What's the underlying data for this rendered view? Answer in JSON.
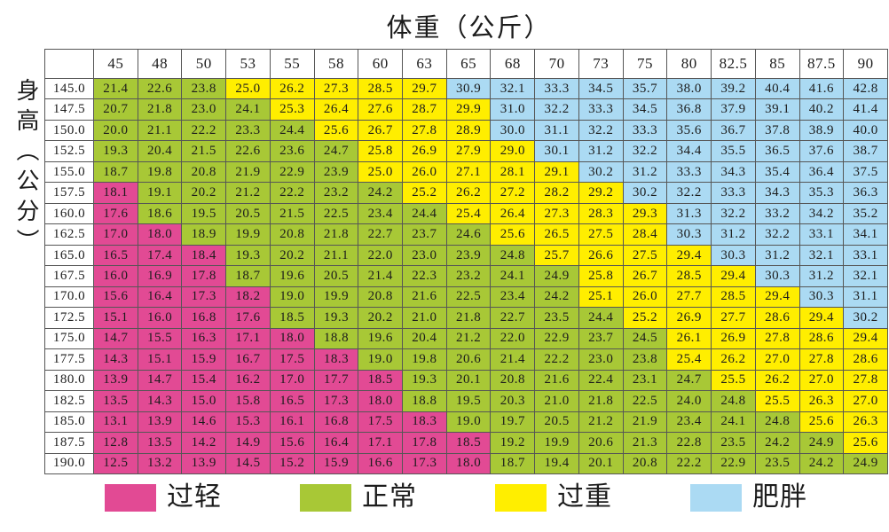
{
  "title": "体重（公斤）",
  "y_axis_label": "身高（公分）",
  "colors": {
    "pink": "#e24a94",
    "green": "#a8c836",
    "yellow": "#ffee00",
    "blue": "#abdaf3",
    "grid": "#565656",
    "header_bg": "#ffffff",
    "text": "#1c1c1c"
  },
  "legend": {
    "items": [
      {
        "key": "underweight",
        "label": "过轻",
        "color": "#e24a94"
      },
      {
        "key": "normal",
        "label": "正常",
        "color": "#a8c836"
      },
      {
        "key": "overweight",
        "label": "过重",
        "color": "#ffee00"
      },
      {
        "key": "obese",
        "label": "肥胖",
        "color": "#abdaf3"
      }
    ]
  },
  "chart_data": {
    "type": "heatmap",
    "title": "体重（公斤）",
    "ylabel": "身高（公分）",
    "legend_labels": [
      "过轻",
      "正常",
      "过重",
      "肥胖"
    ],
    "weights_kg": [
      "45",
      "48",
      "50",
      "53",
      "55",
      "58",
      "60",
      "63",
      "65",
      "68",
      "70",
      "73",
      "75",
      "80",
      "82.5",
      "85",
      "87.5",
      "90"
    ],
    "heights_cm": [
      "145.0",
      "147.5",
      "150.0",
      "152.5",
      "155.0",
      "157.5",
      "160.0",
      "162.5",
      "165.0",
      "167.5",
      "170.0",
      "172.5",
      "175.0",
      "177.5",
      "180.0",
      "182.5",
      "185.0",
      "187.5",
      "190.0"
    ],
    "band_meaning": {
      "pink": "过轻",
      "green": "正常",
      "yellow": "过重",
      "blue": "肥胖"
    },
    "rows": [
      {
        "height": "145.0",
        "values": [
          "21.4",
          "22.6",
          "23.8",
          "25.0",
          "26.2",
          "27.3",
          "28.5",
          "29.7",
          "30.9",
          "32.1",
          "33.3",
          "34.5",
          "35.7",
          "38.0",
          "39.2",
          "40.4",
          "41.6",
          "42.8"
        ],
        "bands": {
          "green": 0,
          "yellow": 3,
          "blue": 8
        }
      },
      {
        "height": "147.5",
        "values": [
          "20.7",
          "21.8",
          "23.0",
          "24.1",
          "25.3",
          "26.4",
          "27.6",
          "28.7",
          "29.9",
          "31.0",
          "32.2",
          "33.3",
          "34.5",
          "36.8",
          "37.9",
          "39.1",
          "40.2",
          "41.4"
        ],
        "bands": {
          "green": 0,
          "yellow": 4,
          "blue": 9
        }
      },
      {
        "height": "150.0",
        "values": [
          "20.0",
          "21.1",
          "22.2",
          "23.3",
          "24.4",
          "25.6",
          "26.7",
          "27.8",
          "28.9",
          "30.0",
          "31.1",
          "32.2",
          "33.3",
          "35.6",
          "36.7",
          "37.8",
          "38.9",
          "40.0"
        ],
        "bands": {
          "green": 0,
          "yellow": 5,
          "blue": 9
        }
      },
      {
        "height": "152.5",
        "values": [
          "19.3",
          "20.4",
          "21.5",
          "22.6",
          "23.6",
          "24.7",
          "25.8",
          "26.9",
          "27.9",
          "29.0",
          "30.1",
          "31.2",
          "32.2",
          "34.4",
          "35.5",
          "36.5",
          "37.6",
          "38.7"
        ],
        "bands": {
          "green": 0,
          "yellow": 6,
          "blue": 10
        }
      },
      {
        "height": "155.0",
        "values": [
          "18.7",
          "19.8",
          "20.8",
          "21.9",
          "22.9",
          "23.9",
          "25.0",
          "26.0",
          "27.1",
          "28.1",
          "29.1",
          "30.2",
          "31.2",
          "33.3",
          "34.3",
          "35.4",
          "36.4",
          "37.5"
        ],
        "bands": {
          "green": 0,
          "yellow": 6,
          "blue": 11
        }
      },
      {
        "height": "157.5",
        "values": [
          "18.1",
          "19.1",
          "20.2",
          "21.2",
          "22.2",
          "23.2",
          "24.2",
          "25.2",
          "26.2",
          "27.2",
          "28.2",
          "29.2",
          "30.2",
          "32.2",
          "33.3",
          "34.3",
          "35.3",
          "36.3"
        ],
        "bands": {
          "green": 1,
          "yellow": 7,
          "blue": 12
        }
      },
      {
        "height": "160.0",
        "values": [
          "17.6",
          "18.6",
          "19.5",
          "20.5",
          "21.5",
          "22.5",
          "23.4",
          "24.4",
          "25.4",
          "26.4",
          "27.3",
          "28.3",
          "29.3",
          "31.3",
          "32.2",
          "33.2",
          "34.2",
          "35.2"
        ],
        "bands": {
          "green": 1,
          "yellow": 8,
          "blue": 13
        }
      },
      {
        "height": "162.5",
        "values": [
          "17.0",
          "18.0",
          "18.9",
          "19.9",
          "20.8",
          "21.8",
          "22.7",
          "23.7",
          "24.6",
          "25.6",
          "26.5",
          "27.5",
          "28.4",
          "30.3",
          "31.2",
          "32.2",
          "33.1",
          "34.1"
        ],
        "bands": {
          "green": 2,
          "yellow": 9,
          "blue": 13
        }
      },
      {
        "height": "165.0",
        "values": [
          "16.5",
          "17.4",
          "18.4",
          "19.3",
          "20.2",
          "21.1",
          "22.0",
          "23.0",
          "23.9",
          "24.8",
          "25.7",
          "26.6",
          "27.5",
          "29.4",
          "30.3",
          "31.2",
          "32.1",
          "33.1"
        ],
        "bands": {
          "green": 3,
          "yellow": 10,
          "blue": 14
        }
      },
      {
        "height": "167.5",
        "values": [
          "16.0",
          "16.9",
          "17.8",
          "18.7",
          "19.6",
          "20.5",
          "21.4",
          "22.3",
          "23.2",
          "24.1",
          "24.9",
          "25.8",
          "26.7",
          "28.5",
          "29.4",
          "30.3",
          "31.2",
          "32.1"
        ],
        "bands": {
          "green": 3,
          "yellow": 11,
          "blue": 15
        }
      },
      {
        "height": "170.0",
        "values": [
          "15.6",
          "16.4",
          "17.3",
          "18.2",
          "19.0",
          "19.9",
          "20.8",
          "21.6",
          "22.5",
          "23.4",
          "24.2",
          "25.1",
          "26.0",
          "27.7",
          "28.5",
          "29.4",
          "30.3",
          "31.1"
        ],
        "bands": {
          "green": 4,
          "yellow": 11,
          "blue": 16
        }
      },
      {
        "height": "172.5",
        "values": [
          "15.1",
          "16.0",
          "16.8",
          "17.6",
          "18.5",
          "19.3",
          "20.2",
          "21.0",
          "21.8",
          "22.7",
          "23.5",
          "24.4",
          "25.2",
          "26.9",
          "27.7",
          "28.6",
          "29.4",
          "30.2"
        ],
        "bands": {
          "green": 4,
          "yellow": 12,
          "blue": 17
        }
      },
      {
        "height": "175.0",
        "values": [
          "14.7",
          "15.5",
          "16.3",
          "17.1",
          "18.0",
          "18.8",
          "19.6",
          "20.4",
          "21.2",
          "22.0",
          "22.9",
          "23.7",
          "24.5",
          "26.1",
          "26.9",
          "27.8",
          "28.6",
          "29.4"
        ],
        "bands": {
          "green": 5,
          "yellow": 13,
          "blue": null
        }
      },
      {
        "height": "177.5",
        "values": [
          "14.3",
          "15.1",
          "15.9",
          "16.7",
          "17.5",
          "18.3",
          "19.0",
          "19.8",
          "20.6",
          "21.4",
          "22.2",
          "23.0",
          "23.8",
          "25.4",
          "26.2",
          "27.0",
          "27.8",
          "28.6"
        ],
        "bands": {
          "green": 6,
          "yellow": 13,
          "blue": null
        }
      },
      {
        "height": "180.0",
        "values": [
          "13.9",
          "14.7",
          "15.4",
          "16.2",
          "17.0",
          "17.7",
          "18.5",
          "19.3",
          "20.1",
          "20.8",
          "21.6",
          "22.4",
          "23.1",
          "24.7",
          "25.5",
          "26.2",
          "27.0",
          "27.8"
        ],
        "bands": {
          "green": 7,
          "yellow": 14,
          "blue": null
        }
      },
      {
        "height": "182.5",
        "values": [
          "13.5",
          "14.3",
          "15.0",
          "15.8",
          "16.5",
          "17.3",
          "18.0",
          "18.8",
          "19.5",
          "20.3",
          "21.0",
          "21.8",
          "22.5",
          "24.0",
          "24.8",
          "25.5",
          "26.3",
          "27.0"
        ],
        "bands": {
          "green": 7,
          "yellow": 15,
          "blue": null
        }
      },
      {
        "height": "185.0",
        "values": [
          "13.1",
          "13.9",
          "14.6",
          "15.3",
          "16.1",
          "16.8",
          "17.5",
          "18.3",
          "19.0",
          "19.7",
          "20.5",
          "21.2",
          "21.9",
          "23.4",
          "24.1",
          "24.8",
          "25.6",
          "26.3"
        ],
        "bands": {
          "green": 8,
          "yellow": 16,
          "blue": null
        }
      },
      {
        "height": "187.5",
        "values": [
          "12.8",
          "13.5",
          "14.2",
          "14.9",
          "15.6",
          "16.4",
          "17.1",
          "17.8",
          "18.5",
          "19.2",
          "19.9",
          "20.6",
          "21.3",
          "22.8",
          "23.5",
          "24.2",
          "24.9",
          "25.6"
        ],
        "bands": {
          "green": 9,
          "yellow": 17,
          "blue": null
        }
      },
      {
        "height": "190.0",
        "values": [
          "12.5",
          "13.2",
          "13.9",
          "14.5",
          "15.2",
          "15.9",
          "16.6",
          "17.3",
          "18.0",
          "18.7",
          "19.4",
          "20.1",
          "20.8",
          "22.2",
          "22.9",
          "23.5",
          "24.2",
          "24.9"
        ],
        "bands": {
          "green": 9,
          "yellow": null,
          "blue": null
        }
      }
    ]
  }
}
